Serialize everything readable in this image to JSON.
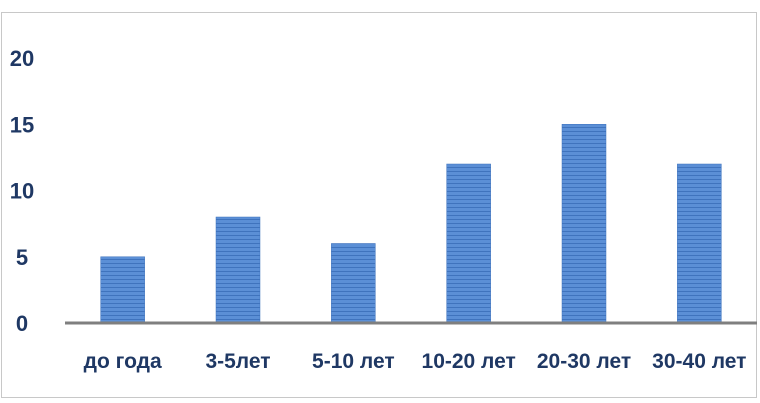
{
  "chart_data": {
    "type": "bar",
    "categories": [
      "до года",
      "3-5лет",
      "5-10 лет",
      "10-20 лет",
      "20-30 лет",
      "30-40 лет"
    ],
    "values": [
      5,
      8,
      6,
      12,
      15,
      12
    ],
    "yticks": [
      "0",
      "5",
      "10",
      "15",
      "20"
    ],
    "ylim": [
      0,
      20
    ],
    "grid": false,
    "legend": "none",
    "colors": {
      "bar": "#5b8fd6",
      "bar_stripe": "#3f73bd",
      "axis": "#7f7f7f",
      "text": "#1f3864"
    }
  }
}
